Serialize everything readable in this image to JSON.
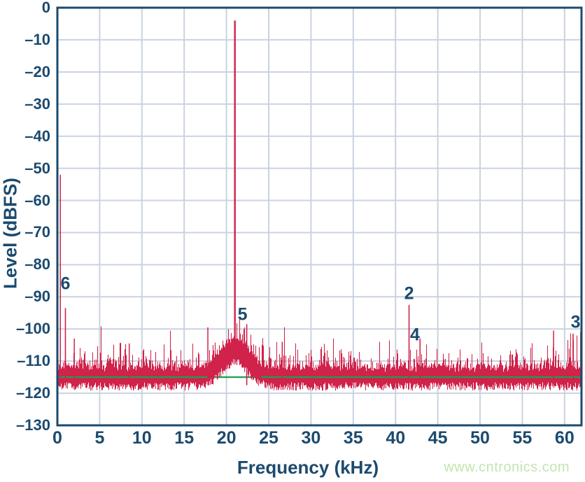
{
  "chart_data": {
    "type": "line",
    "subtype": "fft-noise-spectrum",
    "title": "",
    "xlabel": "Frequency (kHz)",
    "ylabel": "Level (dBFS)",
    "xlim": [
      0,
      62
    ],
    "ylim": [
      -130,
      0
    ],
    "grid": true,
    "x_ticks": [
      0,
      5,
      10,
      15,
      20,
      25,
      30,
      35,
      40,
      45,
      50,
      55,
      60
    ],
    "x_tick_labels": [
      "0",
      "5",
      "10",
      "15",
      "20",
      "25",
      "30",
      "35",
      "40",
      "45",
      "50",
      "55",
      "60"
    ],
    "y_ticks": [
      0,
      -10,
      -20,
      -30,
      -40,
      -50,
      -60,
      -70,
      -80,
      -90,
      -100,
      -110,
      -120,
      -130
    ],
    "y_tick_labels": [
      "0",
      "–10",
      "–20",
      "–30",
      "–40",
      "–50",
      "–60",
      "–70",
      "–80",
      "–90",
      "–100",
      "–110",
      "–120",
      "–130"
    ],
    "fundamental": {
      "freq_khz": 21.0,
      "level_db": -4
    },
    "noise_floor_db": -115.5,
    "noise_band_top_db": -112.5,
    "noise_band_bottom_db": -118.5,
    "mean_noise_line": {
      "level_db": -115.0,
      "color": "#19a34c"
    },
    "noise_hump": {
      "center_khz": 21.0,
      "sigma_khz": 1.55,
      "rise_db": 9.3
    },
    "labeled_peaks": [
      {
        "label": "6",
        "freq_khz": 0.95,
        "level_db": -93.5,
        "label_khz": 0.95,
        "label_db": -86.0
      },
      {
        "label": "5",
        "freq_khz": 22.4,
        "level_db": -98.5,
        "label_khz": 21.9,
        "label_db": -95.5
      },
      {
        "label": "2",
        "freq_khz": 41.6,
        "level_db": -92.5,
        "label_khz": 41.6,
        "label_db": -89.0
      },
      {
        "label": "4",
        "freq_khz": 42.9,
        "level_db": -103.0,
        "label_khz": 42.3,
        "label_db": -102.0
      },
      {
        "label": "3",
        "freq_khz": 61.0,
        "level_db": -101.5,
        "label_khz": 61.3,
        "label_db": -98.0
      }
    ],
    "extra_spikes": [
      {
        "freq_khz": 0.35,
        "level_db": -52.0
      },
      {
        "freq_khz": 2.0,
        "level_db": -103.0
      },
      {
        "freq_khz": 8.5,
        "level_db": -104.5
      },
      {
        "freq_khz": 17.8,
        "level_db": -99.5
      },
      {
        "freq_khz": 26.6,
        "level_db": -104.0
      },
      {
        "freq_khz": 58.7,
        "level_db": -100.5
      },
      {
        "freq_khz": 61.9,
        "level_db": -101.0
      }
    ],
    "colors": {
      "trace": "#d0224a",
      "axis": "#1b4a6e",
      "grid": "#c9d3e0",
      "mean_line": "#19a34c"
    },
    "legend": null
  },
  "watermark": {
    "text": "www.cntronics.com",
    "color": "#c3e5af"
  }
}
